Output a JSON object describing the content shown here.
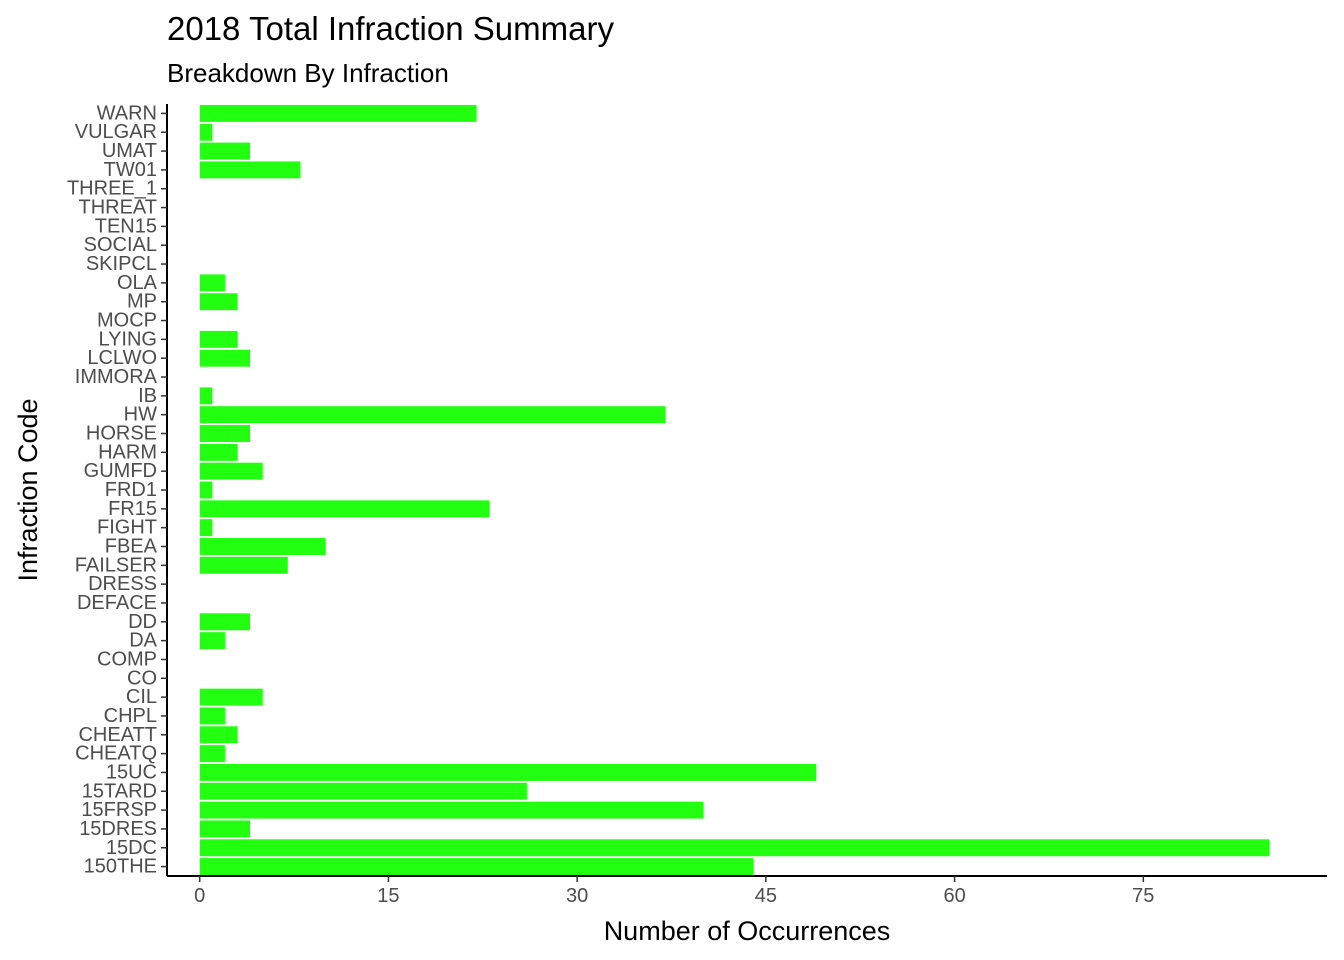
{
  "chart_data": {
    "type": "bar",
    "orientation": "horizontal",
    "title": "2018 Total Infraction Summary",
    "subtitle": "Breakdown By Infraction",
    "xlabel": "Number of Occurrences",
    "ylabel": "Infraction Code",
    "xlim": [
      -2.6,
      89.6
    ],
    "xticks": [
      0,
      15,
      30,
      45,
      60,
      75
    ],
    "bar_color": "#22ff11",
    "grid": false,
    "categories": [
      "WARN",
      "VULGAR",
      "UMAT",
      "TW01",
      "THREE_1",
      "THREAT",
      "TEN15",
      "SOCIAL",
      "SKIPCL",
      "OLA",
      "MP",
      "MOCP",
      "LYING",
      "LCLWO",
      "IMMORA",
      "IB",
      "HW",
      "HORSE",
      "HARM",
      "GUMFD",
      "FRD1",
      "FR15",
      "FIGHT",
      "FBEA",
      "FAILSER",
      "DRESS",
      "DEFACE",
      "DD",
      "DA",
      "COMP",
      "CO",
      "CIL",
      "CHPL",
      "CHEATT",
      "CHEATQ",
      "15UC",
      "15TARD",
      "15FRSP",
      "15DRES",
      "15DC",
      "150THE"
    ],
    "values": [
      22,
      1,
      4,
      8,
      0,
      0,
      0,
      0,
      0,
      2,
      3,
      0,
      3,
      4,
      0,
      1,
      37,
      4,
      3,
      5,
      1,
      23,
      1,
      10,
      7,
      0,
      0,
      4,
      2,
      0,
      0,
      5,
      2,
      3,
      2,
      49,
      26,
      40,
      4,
      85,
      44
    ]
  }
}
